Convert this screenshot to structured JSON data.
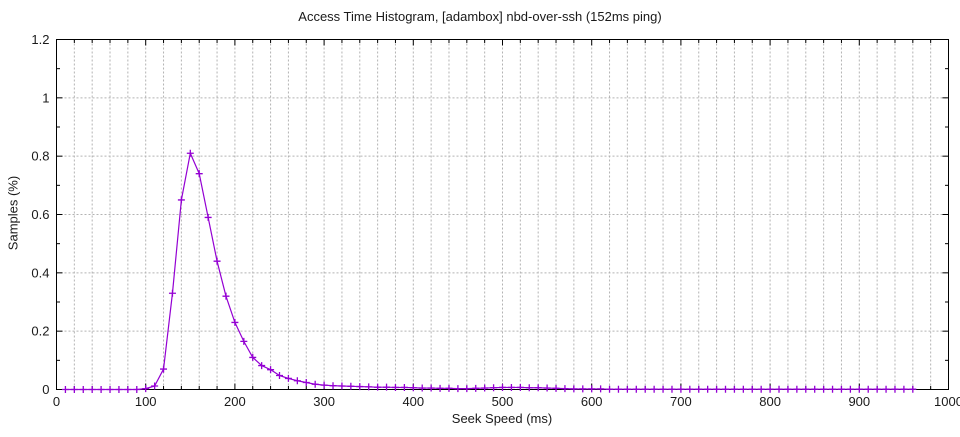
{
  "chart_data": {
    "type": "line",
    "title": "Access Time Histogram, [adambox] nbd-over-ssh (152ms ping)",
    "xlabel": "Seek Speed (ms)",
    "ylabel": "Samples (%)",
    "xlim": [
      0,
      1000
    ],
    "ylim": [
      0,
      1.2
    ],
    "x_tick_labels": [
      "0",
      "100",
      "200",
      "300",
      "400",
      "500",
      "600",
      "700",
      "800",
      "900",
      "1000"
    ],
    "y_tick_labels": [
      "0",
      "0.2",
      "0.4",
      "0.6",
      "0.8",
      "1",
      "1.2"
    ],
    "x_major_step": 100,
    "x_minor_step": 20,
    "y_major_step": 0.2,
    "y_minor_step": 0.1,
    "grid": true,
    "grid_style": "dashed",
    "legend": "none",
    "marker": "plus",
    "line_color": "#9400d3",
    "grid_color": "#b3b3b3",
    "border_color": "#000000",
    "text_color": "#1a1a1a",
    "x": [
      10,
      20,
      30,
      40,
      50,
      60,
      70,
      80,
      90,
      100,
      110,
      120,
      130,
      140,
      150,
      160,
      170,
      180,
      190,
      200,
      210,
      220,
      230,
      240,
      250,
      260,
      270,
      280,
      290,
      300,
      310,
      320,
      330,
      340,
      350,
      360,
      370,
      380,
      390,
      400,
      410,
      420,
      430,
      440,
      450,
      460,
      470,
      480,
      490,
      500,
      510,
      520,
      530,
      540,
      550,
      560,
      570,
      580,
      590,
      600,
      610,
      620,
      630,
      640,
      650,
      660,
      670,
      680,
      690,
      700,
      710,
      720,
      730,
      740,
      750,
      760,
      770,
      780,
      790,
      800,
      810,
      820,
      830,
      840,
      850,
      860,
      870,
      880,
      890,
      900,
      910,
      920,
      930,
      940,
      950,
      960
    ],
    "y": [
      0,
      0,
      0,
      0,
      0,
      0,
      0,
      0,
      0,
      0.003,
      0.012,
      0.07,
      0.33,
      0.65,
      0.81,
      0.74,
      0.59,
      0.44,
      0.32,
      0.23,
      0.165,
      0.11,
      0.082,
      0.068,
      0.048,
      0.038,
      0.03,
      0.024,
      0.018,
      0.015,
      0.013,
      0.012,
      0.011,
      0.01,
      0.009,
      0.008,
      0.008,
      0.007,
      0.007,
      0.006,
      0.005,
      0.005,
      0.004,
      0.004,
      0.003,
      0.003,
      0.004,
      0.005,
      0.006,
      0.007,
      0.007,
      0.007,
      0.006,
      0.006,
      0.005,
      0.004,
      0.003,
      0.002,
      0.002,
      0.002,
      0.002,
      0.001,
      0.001,
      0.001,
      0.001,
      0.001,
      0.001,
      0.001,
      0.001,
      0.001,
      0.001,
      0.001,
      0.001,
      0.001,
      0.001,
      0.001,
      0.001,
      0.001,
      0.001,
      0.001,
      0.001,
      0.001,
      0.001,
      0.001,
      0.001,
      0.001,
      0.001,
      0.001,
      0.001,
      0.001,
      0.001,
      0.001,
      0.001,
      0.001,
      0.001,
      0.001
    ]
  }
}
